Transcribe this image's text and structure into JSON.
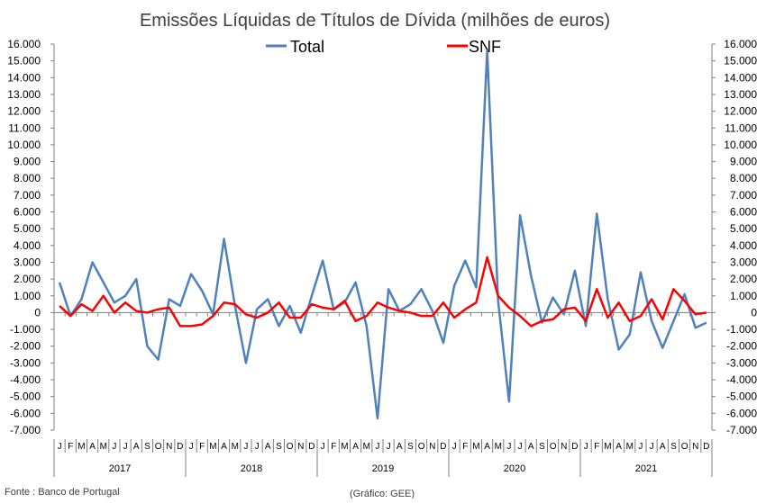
{
  "chart_data": {
    "type": "line",
    "title": "Emissões Líquidas de Títulos de Dívida (milhões de euros)",
    "xlabel": "",
    "ylabel": "",
    "ylim": [
      -7000,
      16000
    ],
    "y_ticks": [
      16000,
      15000,
      14000,
      13000,
      12000,
      11000,
      10000,
      9000,
      8000,
      7000,
      6000,
      5000,
      4000,
      3000,
      2000,
      1000,
      0,
      -1000,
      -2000,
      -3000,
      -4000,
      -5000,
      -6000,
      -7000
    ],
    "y_tick_labels": [
      "16.000",
      "15.000",
      "14.000",
      "13.000",
      "12.000",
      "11.000",
      "10.000",
      "9.000",
      "8.000",
      "7.000",
      "6.000",
      "5.000",
      "4.000",
      "3.000",
      "2.000",
      "1.000",
      "0",
      "-1.000",
      "-2.000",
      "-3.000",
      "-4.000",
      "-5.000",
      "-6.000",
      "-7.000"
    ],
    "month_labels": [
      "J",
      "F",
      "M",
      "A",
      "M",
      "J",
      "J",
      "A",
      "S",
      "O",
      "N",
      "D",
      "J",
      "F",
      "M",
      "A",
      "M",
      "J",
      "J",
      "A",
      "S",
      "O",
      "N",
      "D",
      "J",
      "F",
      "M",
      "A",
      "M",
      "J",
      "J",
      "A",
      "S",
      "O",
      "N",
      "D",
      "J",
      "F",
      "M",
      "A",
      "M",
      "J",
      "J",
      "A",
      "S",
      "O",
      "N",
      "D",
      "J",
      "F",
      "M",
      "A",
      "M",
      "J",
      "J",
      "A",
      "S",
      "O",
      "N",
      "D"
    ],
    "years": [
      "2017",
      "2018",
      "2019",
      "2020",
      "2021"
    ],
    "grid": false,
    "legend_position": "top-center",
    "series": [
      {
        "name": "Total",
        "color": "#4f81bd",
        "values": [
          1800,
          -200,
          800,
          3000,
          1800,
          600,
          1000,
          2000,
          -2000,
          -2800,
          800,
          400,
          2300,
          1300,
          -100,
          4400,
          400,
          -3000,
          200,
          800,
          -800,
          400,
          -1200,
          1000,
          3100,
          200,
          600,
          1800,
          -800,
          -6300,
          1400,
          100,
          500,
          1400,
          100,
          -1800,
          1600,
          3100,
          1500,
          15600,
          700,
          -5300,
          5800,
          2200,
          -600,
          900,
          -100,
          2500,
          -800,
          5900,
          800,
          -2200,
          -1300,
          2400,
          -500,
          -2100,
          -500,
          1100,
          -900,
          -600
        ]
      },
      {
        "name": "SNF",
        "color": "#ff0000",
        "values": [
          400,
          -200,
          500,
          100,
          1000,
          0,
          600,
          100,
          0,
          200,
          300,
          -800,
          -800,
          -700,
          -200,
          600,
          500,
          -100,
          -300,
          0,
          600,
          -300,
          -300,
          500,
          300,
          200,
          700,
          -500,
          -200,
          600,
          300,
          100,
          0,
          -200,
          -200,
          600,
          -300,
          200,
          600,
          3300,
          1000,
          300,
          -200,
          -800,
          -500,
          -400,
          200,
          300,
          -500,
          1400,
          -300,
          600,
          -500,
          -200,
          800,
          -400,
          1400,
          700,
          -100,
          0
        ]
      }
    ]
  },
  "source_note": "Fonte : Banco de Portugal",
  "credit_note": "(Gráfico: GEE)"
}
